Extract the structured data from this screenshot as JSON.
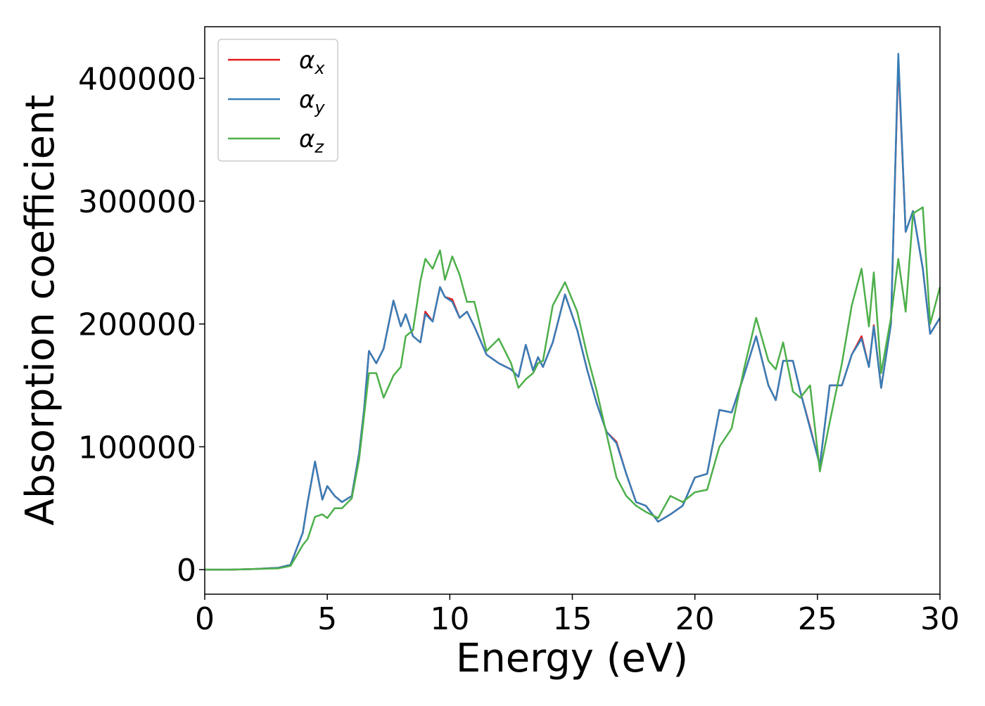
{
  "chart_data": {
    "type": "line",
    "xlabel": "Energy (eV)",
    "ylabel": "Absorption coefficient",
    "x": [
      0,
      1,
      2,
      3,
      3.5,
      4,
      4.2,
      4.5,
      4.8,
      5,
      5.3,
      5.6,
      6,
      6.3,
      6.5,
      6.7,
      7,
      7.3,
      7.7,
      8,
      8.2,
      8.5,
      8.8,
      9,
      9.3,
      9.6,
      9.8,
      10.1,
      10.4,
      10.7,
      11,
      11.5,
      12,
      12.5,
      12.8,
      13.1,
      13.4,
      13.6,
      13.8,
      14.2,
      14.7,
      15.2,
      15.6,
      16,
      16.4,
      16.8,
      17.2,
      17.6,
      18,
      18.5,
      19,
      19.5,
      20,
      20.5,
      21,
      21.5,
      22,
      22.5,
      23,
      23.3,
      23.6,
      24,
      24.3,
      24.7,
      25.1,
      25.5,
      26,
      26.4,
      26.8,
      27.1,
      27.3,
      27.6,
      28,
      28.3,
      28.6,
      28.9,
      29.3,
      29.6,
      30
    ],
    "series": [
      {
        "name": "αx",
        "color": "#e41a1c",
        "values": [
          0,
          0,
          500,
          1500,
          4000,
          30000,
          55000,
          88000,
          57000,
          68000,
          60000,
          55000,
          60000,
          95000,
          130000,
          178000,
          168000,
          180000,
          219000,
          198000,
          208000,
          190000,
          185000,
          210000,
          202000,
          230000,
          222000,
          220000,
          205000,
          210000,
          198000,
          175000,
          168000,
          163000,
          157000,
          183000,
          162000,
          173000,
          165000,
          185000,
          224000,
          195000,
          163000,
          135000,
          112000,
          104000,
          78000,
          55000,
          52000,
          39000,
          45000,
          52000,
          75000,
          78000,
          130000,
          128000,
          158000,
          190000,
          150000,
          138000,
          170000,
          170000,
          145000,
          116000,
          85000,
          150000,
          150000,
          175000,
          190000,
          165000,
          199000,
          148000,
          200000,
          415000,
          275000,
          292000,
          245000,
          192000,
          205000
        ]
      },
      {
        "name": "αy",
        "color": "#377eb8",
        "values": [
          0,
          0,
          500,
          1500,
          4000,
          30000,
          55000,
          88000,
          57000,
          68000,
          60000,
          55000,
          60000,
          95000,
          130000,
          178000,
          168000,
          180000,
          219000,
          198000,
          208000,
          190000,
          185000,
          208000,
          202000,
          230000,
          222000,
          218000,
          205000,
          210000,
          198000,
          175000,
          168000,
          163000,
          157000,
          183000,
          162000,
          173000,
          165000,
          185000,
          224000,
          195000,
          163000,
          135000,
          112000,
          103000,
          78000,
          55000,
          52000,
          39000,
          45000,
          52000,
          75000,
          78000,
          130000,
          128000,
          158000,
          190000,
          150000,
          138000,
          170000,
          170000,
          145000,
          115000,
          85000,
          150000,
          150000,
          175000,
          188000,
          165000,
          198000,
          148000,
          200000,
          420000,
          275000,
          292000,
          245000,
          192000,
          205000
        ]
      },
      {
        "name": "αz",
        "color": "#4daf4a",
        "values": [
          0,
          0,
          500,
          1000,
          3000,
          20000,
          25000,
          43000,
          45000,
          42000,
          50000,
          50000,
          58000,
          90000,
          125000,
          160000,
          160000,
          140000,
          158000,
          165000,
          190000,
          195000,
          235000,
          253000,
          245000,
          260000,
          236000,
          255000,
          240000,
          218000,
          218000,
          178000,
          188000,
          168000,
          148000,
          155000,
          160000,
          168000,
          170000,
          215000,
          234000,
          210000,
          175000,
          145000,
          110000,
          75000,
          60000,
          52000,
          47000,
          42000,
          60000,
          55000,
          63000,
          65000,
          100000,
          115000,
          163000,
          205000,
          170000,
          163000,
          185000,
          145000,
          140000,
          150000,
          80000,
          120000,
          168000,
          215000,
          245000,
          198000,
          242000,
          160000,
          205000,
          253000,
          210000,
          290000,
          295000,
          200000,
          230000
        ]
      }
    ],
    "xlim": [
      0,
      30
    ],
    "xticks": [
      0,
      5,
      10,
      15,
      20,
      25,
      30
    ],
    "ylim": [
      -20000,
      442000
    ],
    "yticks": [
      0,
      100000,
      200000,
      300000,
      400000
    ],
    "legend": "upper left"
  }
}
